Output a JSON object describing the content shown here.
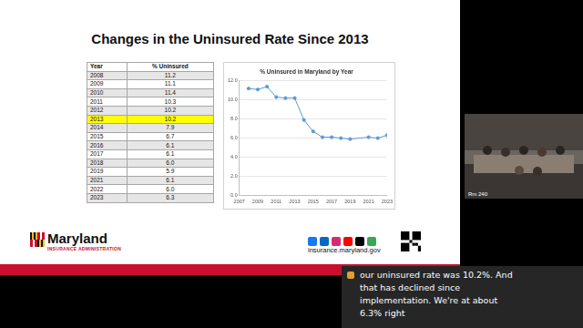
{
  "slide": {
    "title": "Changes in the Uninsured Rate Since 2013",
    "table": {
      "header": [
        "Year",
        "% Uninsured"
      ],
      "rows": [
        {
          "cells": [
            "2008",
            "11.2"
          ]
        },
        {
          "cells": [
            "2009",
            "11.1"
          ]
        },
        {
          "cells": [
            "2010",
            "11.4"
          ]
        },
        {
          "cells": [
            "2011",
            "10.3"
          ]
        },
        {
          "cells": [
            "2012",
            "10.2"
          ]
        },
        {
          "cells": [
            "2013",
            "10.2"
          ],
          "highlight": true
        },
        {
          "cells": [
            "2014",
            "7.9"
          ]
        },
        {
          "cells": [
            "2015",
            "6.7"
          ]
        },
        {
          "cells": [
            "2016",
            "6.1"
          ]
        },
        {
          "cells": [
            "2017",
            "6.1"
          ]
        },
        {
          "cells": [
            "2018",
            "6.0"
          ]
        },
        {
          "cells": [
            "2019",
            "5.9"
          ]
        },
        {
          "cells": [
            "2021",
            "6.1"
          ]
        },
        {
          "cells": [
            "2022",
            "6.0"
          ]
        },
        {
          "cells": [
            "2023",
            "6.3"
          ]
        }
      ]
    },
    "logo": {
      "name": "Maryland",
      "subtitle": "INSURANCE ADMINISTRATION"
    },
    "website": "insurance.maryland.gov"
  },
  "video": {
    "label": "Rm 240"
  },
  "caption_lines": [
    "our uninsured rate was 10.2%. And",
    "that has declined since",
    "implementation. We're at about",
    "6.3% right"
  ],
  "chart_data": {
    "type": "line",
    "title": "% Uninsured in Maryland by Year",
    "x": [
      2008,
      2009,
      2010,
      2011,
      2012,
      2013,
      2014,
      2015,
      2016,
      2017,
      2018,
      2019,
      2021,
      2022,
      2023
    ],
    "values": [
      11.2,
      11.1,
      11.4,
      10.3,
      10.2,
      10.2,
      7.9,
      6.7,
      6.1,
      6.1,
      6.0,
      5.9,
      6.1,
      6.0,
      6.3
    ],
    "color": "#5b9bd5",
    "marker": "circle",
    "xlim": [
      2007,
      2023
    ],
    "xticks": [
      2007,
      2009,
      2011,
      2013,
      2015,
      2017,
      2019,
      2021,
      2023
    ],
    "ylim": [
      0,
      12
    ],
    "yticks": [
      {
        "value": 0,
        "label": "0.0"
      },
      {
        "value": 2,
        "label": "2.0"
      },
      {
        "value": 4,
        "label": "4.0"
      },
      {
        "value": 6,
        "label": "6.0"
      },
      {
        "value": 8,
        "label": "8.0"
      },
      {
        "value": 10,
        "label": "10.0"
      },
      {
        "value": 12,
        "label": "12.0"
      }
    ],
    "grid": true
  }
}
